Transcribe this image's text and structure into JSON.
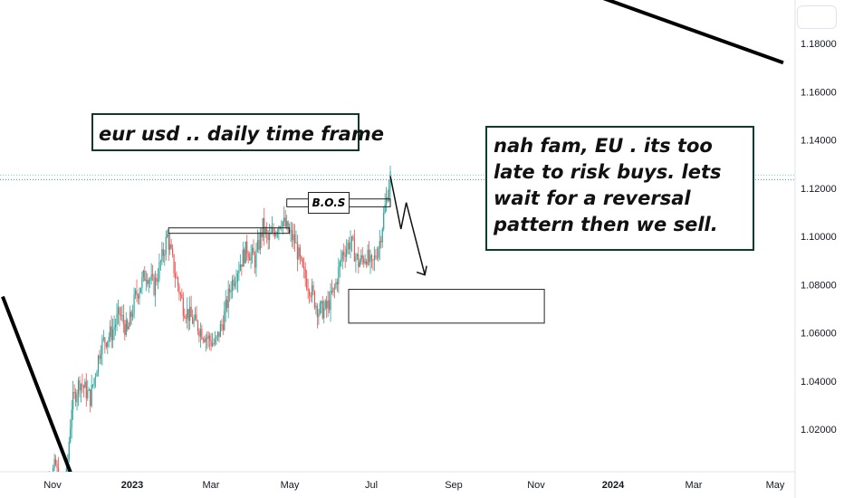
{
  "annotations": {
    "title": "eur usd .. daily time frame",
    "comment": "nah fam, EU . its too late to risk buys. lets wait for a reversal pattern then we sell.",
    "bos_label": "B.O.S"
  },
  "colors": {
    "up": "#26a69a",
    "down": "#ef5350",
    "annotation_border": "#0b3d2c",
    "price_line": "#26a69a"
  },
  "chart_data": {
    "type": "candlestick",
    "title": "",
    "symbol_note": "EURUSD daily",
    "y_ticks": [
      "1.18000",
      "1.16000",
      "1.14000",
      "1.12000",
      "1.10000",
      "1.08000",
      "1.06000",
      "1.04000",
      "1.02000"
    ],
    "y_tick_values": [
      1.18,
      1.16,
      1.14,
      1.12,
      1.1,
      1.08,
      1.06,
      1.04,
      1.02
    ],
    "ylim": [
      1.0,
      1.19
    ],
    "x_labels": [
      {
        "label": "Nov",
        "bold": false
      },
      {
        "label": "2023",
        "bold": true
      },
      {
        "label": "Mar",
        "bold": false
      },
      {
        "label": "May",
        "bold": false
      },
      {
        "label": "Jul",
        "bold": false
      },
      {
        "label": "Sep",
        "bold": false
      },
      {
        "label": "Nov",
        "bold": false
      },
      {
        "label": "2024",
        "bold": true
      },
      {
        "label": "Mar",
        "bold": false
      },
      {
        "label": "May",
        "bold": false
      }
    ],
    "last_price": 1.1235,
    "price_path": [
      [
        0,
        0.99
      ],
      [
        12,
        1.005
      ],
      [
        18,
        0.985
      ],
      [
        24,
        1.03
      ],
      [
        30,
        1.04
      ],
      [
        38,
        1.033
      ],
      [
        46,
        1.055
      ],
      [
        54,
        1.06
      ],
      [
        60,
        1.068
      ],
      [
        66,
        1.06
      ],
      [
        72,
        1.075
      ],
      [
        80,
        1.085
      ],
      [
        86,
        1.079
      ],
      [
        92,
        1.091
      ],
      [
        96,
        1.1
      ],
      [
        102,
        1.084
      ],
      [
        108,
        1.071
      ],
      [
        114,
        1.066
      ],
      [
        120,
        1.062
      ],
      [
        126,
        1.058
      ],
      [
        132,
        1.055
      ],
      [
        138,
        1.065
      ],
      [
        144,
        1.08
      ],
      [
        150,
        1.088
      ],
      [
        156,
        1.095
      ],
      [
        162,
        1.09
      ],
      [
        168,
        1.104
      ],
      [
        172,
        1.098
      ],
      [
        176,
        1.102
      ],
      [
        182,
        1.107
      ],
      [
        188,
        1.101
      ],
      [
        192,
        1.098
      ],
      [
        198,
        1.085
      ],
      [
        204,
        1.078
      ],
      [
        210,
        1.069
      ],
      [
        216,
        1.07
      ],
      [
        222,
        1.078
      ],
      [
        228,
        1.093
      ],
      [
        234,
        1.098
      ],
      [
        240,
        1.089
      ],
      [
        246,
        1.092
      ],
      [
        250,
        1.087
      ],
      [
        256,
        1.098
      ],
      [
        260,
        1.112
      ],
      [
        264,
        1.125
      ]
    ],
    "projection": [
      [
        264,
        1.125
      ],
      [
        272,
        1.103
      ],
      [
        276,
        1.114
      ],
      [
        290,
        1.084
      ]
    ],
    "resistance_lines": [
      {
        "name": "prior-high",
        "x0": 97,
        "x1": 188,
        "y0": 1.1035,
        "y1": 1.102
      },
      {
        "name": "bos-zone",
        "x0": 186,
        "x1": 264,
        "y0": 1.1155,
        "y1": 1.113
      }
    ],
    "demand_zone": {
      "x0": 245,
      "x1": 383,
      "y_top": 1.078,
      "y_bottom": 1.064
    },
    "trendlines": [
      {
        "name": "upper-trendline",
        "points": [
          [
            190,
            1.245
          ],
          [
            560,
            1.172
          ]
        ]
      },
      {
        "name": "lower-trendline",
        "points": [
          [
            -28,
            1.075
          ],
          [
            28,
            0.995
          ]
        ]
      }
    ]
  }
}
